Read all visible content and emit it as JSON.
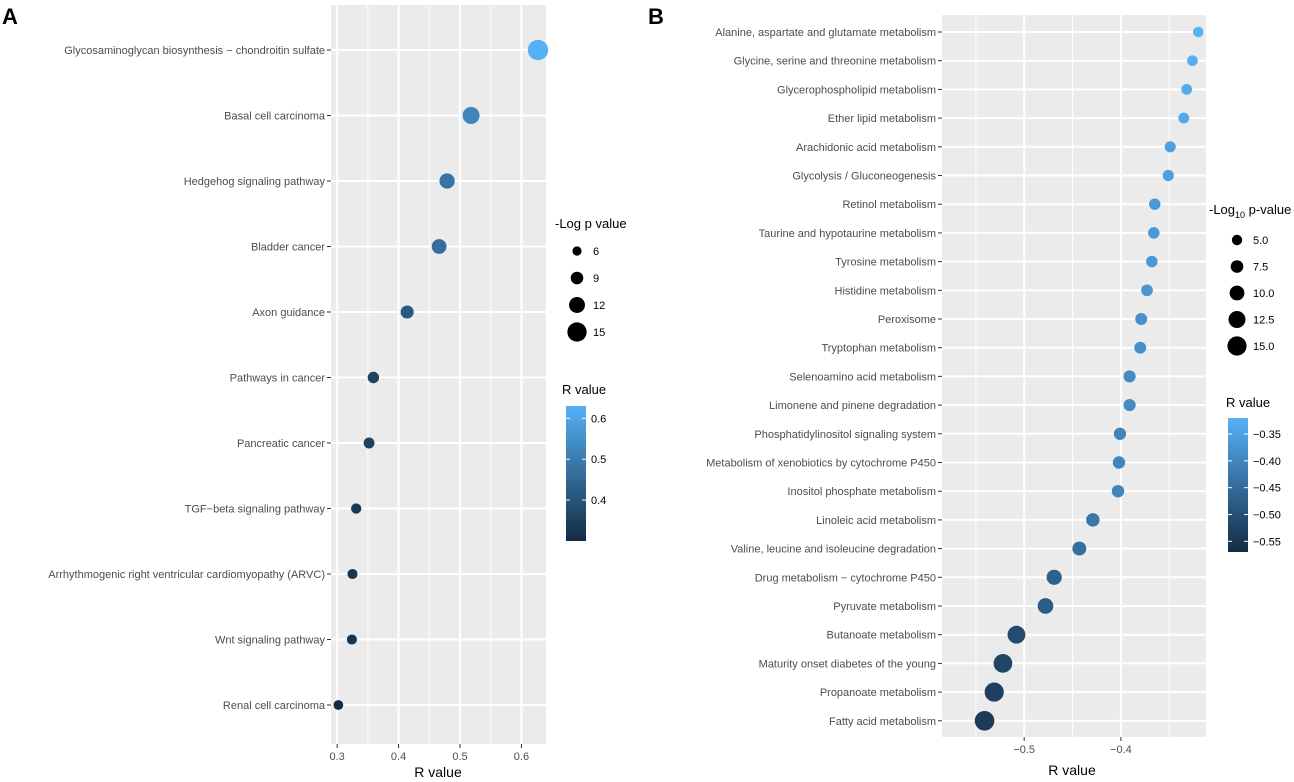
{
  "chart_data": [
    {
      "panel": "A",
      "type": "scatter",
      "xlabel": "R value",
      "xlim": [
        0.29,
        0.64
      ],
      "xticks": [
        0.3,
        0.4,
        0.5,
        0.6
      ],
      "xtick_labels": [
        "0.3",
        "0.4",
        "0.5",
        "0.6"
      ],
      "categories": [
        "Glycosaminoglycan biosynthesis − chondroitin sulfate",
        "Basal cell carcinoma",
        "Hedgehog signaling pathway",
        "Bladder cancer",
        "Axon guidance",
        "Pathways in cancer",
        "Pancreatic cancer",
        "TGF−beta signaling pathway",
        "Arrhythmogenic right ventricular cardiomyopathy (ARVC)",
        "Wnt signaling pathway",
        "Renal cell carcinoma"
      ],
      "r_values": [
        0.627,
        0.518,
        0.479,
        0.466,
        0.414,
        0.359,
        0.352,
        0.331,
        0.325,
        0.324,
        0.302
      ],
      "log_p_values": [
        16.0,
        13.0,
        11.5,
        11.0,
        9.5,
        8.0,
        7.5,
        7.0,
        6.8,
        6.8,
        6.5
      ],
      "size_legend": {
        "title": "-Log p value",
        "values": [
          6,
          9,
          12,
          15
        ],
        "labels": [
          "6",
          "9",
          "12",
          "15"
        ]
      },
      "color_legend": {
        "title": "R value",
        "range": [
          0.3,
          0.63
        ],
        "ticks": [
          0.4,
          0.5,
          0.6
        ],
        "labels": [
          "0.4",
          "0.5",
          "0.6"
        ]
      }
    },
    {
      "panel": "B",
      "type": "scatter",
      "xlabel": "R value",
      "xlim": [
        -0.585,
        -0.312
      ],
      "xticks": [
        -0.5,
        -0.4
      ],
      "xtick_labels": [
        "−0.5",
        "−0.4"
      ],
      "categories": [
        "Alanine, aspartate and glutamate metabolism",
        "Glycine, serine and threonine metabolism",
        "Glycerophospholipid metabolism",
        "Ether lipid metabolism",
        "Arachidonic acid metabolism",
        "Glycolysis / Gluconeogenesis",
        "Retinol metabolism",
        "Taurine and hypotaurine metabolism",
        "Tyrosine metabolism",
        "Histidine metabolism",
        "Peroxisome",
        "Tryptophan metabolism",
        "Selenoamino acid metabolism",
        "Limonene and pinene degradation",
        "Phosphatidylinositol signaling system",
        "Metabolism of xenobiotics by cytochrome P450",
        "Inositol phosphate metabolism",
        "Linoleic acid metabolism",
        "Valine, leucine and isoleucine degradation",
        "Drug metabolism − cytochrome P450",
        "Pyruvate metabolism",
        "Butanoate metabolism",
        "Maturity onset diabetes of the young",
        "Propanoate metabolism",
        "Fatty acid metabolism"
      ],
      "r_values": [
        -0.32,
        -0.326,
        -0.332,
        -0.335,
        -0.349,
        -0.351,
        -0.365,
        -0.366,
        -0.368,
        -0.373,
        -0.379,
        -0.38,
        -0.391,
        -0.391,
        -0.401,
        -0.402,
        -0.403,
        -0.429,
        -0.443,
        -0.469,
        -0.478,
        -0.508,
        -0.522,
        -0.531,
        -0.541
      ],
      "log_p_values": [
        5.2,
        5.3,
        5.4,
        5.5,
        5.8,
        5.9,
        6.1,
        6.2,
        6.3,
        6.5,
        6.7,
        6.8,
        7.0,
        7.0,
        7.2,
        7.3,
        7.3,
        8.5,
        9.0,
        10.5,
        11.0,
        13.5,
        14.5,
        15.0,
        15.5
      ],
      "size_legend": {
        "title_main": "-Log",
        "title_sub": "10",
        "title_rest": " p-value",
        "values": [
          5.0,
          7.5,
          10.0,
          12.5,
          15.0
        ],
        "labels": [
          "5.0",
          "7.5",
          "10.0",
          "12.5",
          "15.0"
        ]
      },
      "color_legend": {
        "title": "R value",
        "range": [
          -0.57,
          -0.32
        ],
        "ticks": [
          -0.35,
          -0.4,
          -0.45,
          -0.5,
          -0.55
        ],
        "labels": [
          "−0.35",
          "−0.40",
          "−0.45",
          "−0.50",
          "−0.55"
        ]
      }
    }
  ],
  "colors": {
    "panel_bg": "#ebebeb",
    "grid": "#ffffff",
    "low": "#132b43",
    "high": "#56b1f7"
  }
}
